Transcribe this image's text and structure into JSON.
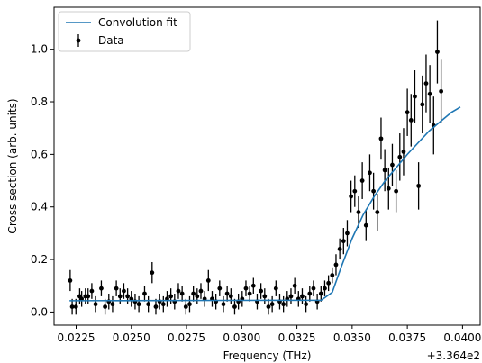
{
  "chart_data": {
    "type": "scatter",
    "xlabel": "Frequency (THz)",
    "ylabel": "Cross section (arb. units)",
    "offset_label": "+3.364e2",
    "xlim": [
      0.0215,
      0.0408
    ],
    "ylim": [
      -0.05,
      1.16
    ],
    "xticks": [
      0.0225,
      0.025,
      0.0275,
      0.03,
      0.0325,
      0.035,
      0.0375,
      0.04
    ],
    "xtick_labels": [
      "0.0225",
      "0.0250",
      "0.0275",
      "0.0300",
      "0.0325",
      "0.0350",
      "0.0375",
      "0.0400"
    ],
    "yticks": [
      0.0,
      0.2,
      0.4,
      0.6,
      0.8,
      1.0
    ],
    "ytick_labels": [
      "0.0",
      "0.2",
      "0.4",
      "0.6",
      "0.8",
      "1.0"
    ],
    "grid": false,
    "legend_position": "top-left",
    "series": [
      {
        "name": "Convolution fit",
        "kind": "line",
        "color": "#1f77b4",
        "x": [
          0.0222,
          0.0336,
          0.0341,
          0.0345,
          0.035,
          0.0355,
          0.036,
          0.0365,
          0.037,
          0.0375,
          0.038,
          0.0385,
          0.039,
          0.0395,
          0.0399
        ],
        "y": [
          0.043,
          0.045,
          0.075,
          0.17,
          0.28,
          0.37,
          0.44,
          0.5,
          0.55,
          0.6,
          0.645,
          0.69,
          0.725,
          0.76,
          0.78
        ]
      },
      {
        "name": "Data",
        "kind": "errorbar",
        "color": "#000000",
        "points": [
          [
            0.02223,
            0.12,
            0.04
          ],
          [
            0.02232,
            0.02,
            0.03
          ],
          [
            0.02249,
            0.02,
            0.03
          ],
          [
            0.02266,
            0.06,
            0.03
          ],
          [
            0.02275,
            0.05,
            0.03
          ],
          [
            0.02292,
            0.06,
            0.03
          ],
          [
            0.02304,
            0.06,
            0.03
          ],
          [
            0.02321,
            0.08,
            0.03
          ],
          [
            0.02338,
            0.03,
            0.03
          ],
          [
            0.02364,
            0.09,
            0.03
          ],
          [
            0.02381,
            0.02,
            0.03
          ],
          [
            0.02398,
            0.04,
            0.03
          ],
          [
            0.02415,
            0.03,
            0.03
          ],
          [
            0.02432,
            0.09,
            0.03
          ],
          [
            0.02449,
            0.06,
            0.03
          ],
          [
            0.02466,
            0.08,
            0.03
          ],
          [
            0.02483,
            0.06,
            0.03
          ],
          [
            0.025,
            0.05,
            0.03
          ],
          [
            0.02517,
            0.04,
            0.03
          ],
          [
            0.02534,
            0.03,
            0.03
          ],
          [
            0.0256,
            0.07,
            0.03
          ],
          [
            0.02577,
            0.03,
            0.03
          ],
          [
            0.02594,
            0.15,
            0.04
          ],
          [
            0.02611,
            0.02,
            0.03
          ],
          [
            0.02628,
            0.04,
            0.03
          ],
          [
            0.02645,
            0.03,
            0.03
          ],
          [
            0.02662,
            0.05,
            0.03
          ],
          [
            0.02679,
            0.06,
            0.03
          ],
          [
            0.02696,
            0.04,
            0.03
          ],
          [
            0.02713,
            0.08,
            0.03
          ],
          [
            0.0273,
            0.07,
            0.03
          ],
          [
            0.02747,
            0.02,
            0.03
          ],
          [
            0.02764,
            0.03,
            0.03
          ],
          [
            0.02781,
            0.07,
            0.03
          ],
          [
            0.02798,
            0.06,
            0.03
          ],
          [
            0.02815,
            0.08,
            0.03
          ],
          [
            0.02832,
            0.05,
            0.03
          ],
          [
            0.02849,
            0.12,
            0.04
          ],
          [
            0.02866,
            0.05,
            0.03
          ],
          [
            0.02883,
            0.04,
            0.03
          ],
          [
            0.029,
            0.09,
            0.03
          ],
          [
            0.02917,
            0.03,
            0.03
          ],
          [
            0.02934,
            0.07,
            0.03
          ],
          [
            0.02951,
            0.06,
            0.03
          ],
          [
            0.02968,
            0.02,
            0.03
          ],
          [
            0.02985,
            0.04,
            0.03
          ],
          [
            0.03002,
            0.05,
            0.03
          ],
          [
            0.03019,
            0.09,
            0.03
          ],
          [
            0.03036,
            0.07,
            0.03
          ],
          [
            0.03053,
            0.1,
            0.03
          ],
          [
            0.0307,
            0.04,
            0.03
          ],
          [
            0.03087,
            0.08,
            0.03
          ],
          [
            0.03104,
            0.06,
            0.03
          ],
          [
            0.03121,
            0.02,
            0.03
          ],
          [
            0.03138,
            0.03,
            0.03
          ],
          [
            0.03155,
            0.09,
            0.03
          ],
          [
            0.03172,
            0.04,
            0.03
          ],
          [
            0.03189,
            0.03,
            0.03
          ],
          [
            0.03206,
            0.05,
            0.03
          ],
          [
            0.03223,
            0.06,
            0.03
          ],
          [
            0.0324,
            0.1,
            0.03
          ],
          [
            0.03257,
            0.05,
            0.03
          ],
          [
            0.03274,
            0.06,
            0.03
          ],
          [
            0.03291,
            0.03,
            0.03
          ],
          [
            0.03308,
            0.07,
            0.03
          ],
          [
            0.03325,
            0.09,
            0.03
          ],
          [
            0.03342,
            0.04,
            0.03
          ],
          [
            0.03359,
            0.07,
            0.03
          ],
          [
            0.03376,
            0.09,
            0.03
          ],
          [
            0.03393,
            0.11,
            0.03
          ],
          [
            0.0341,
            0.14,
            0.03
          ],
          [
            0.03427,
            0.18,
            0.04
          ],
          [
            0.03444,
            0.24,
            0.04
          ],
          [
            0.03461,
            0.27,
            0.05
          ],
          [
            0.03478,
            0.3,
            0.05
          ],
          [
            0.03495,
            0.44,
            0.06
          ],
          [
            0.03512,
            0.46,
            0.06
          ],
          [
            0.03529,
            0.38,
            0.06
          ],
          [
            0.03546,
            0.5,
            0.07
          ],
          [
            0.03563,
            0.33,
            0.06
          ],
          [
            0.0358,
            0.53,
            0.07
          ],
          [
            0.03597,
            0.46,
            0.07
          ],
          [
            0.03614,
            0.38,
            0.07
          ],
          [
            0.03631,
            0.66,
            0.08
          ],
          [
            0.03648,
            0.54,
            0.08
          ],
          [
            0.03665,
            0.47,
            0.08
          ],
          [
            0.03682,
            0.56,
            0.08
          ],
          [
            0.03699,
            0.46,
            0.08
          ],
          [
            0.03716,
            0.59,
            0.09
          ],
          [
            0.03733,
            0.61,
            0.09
          ],
          [
            0.0375,
            0.76,
            0.09
          ],
          [
            0.03767,
            0.73,
            0.1
          ],
          [
            0.03784,
            0.82,
            0.1
          ],
          [
            0.03801,
            0.48,
            0.09
          ],
          [
            0.03818,
            0.79,
            0.11
          ],
          [
            0.03835,
            0.87,
            0.11
          ],
          [
            0.03852,
            0.83,
            0.11
          ],
          [
            0.03869,
            0.71,
            0.11
          ],
          [
            0.03886,
            0.99,
            0.12
          ],
          [
            0.03903,
            0.84,
            0.12
          ]
        ]
      }
    ]
  }
}
